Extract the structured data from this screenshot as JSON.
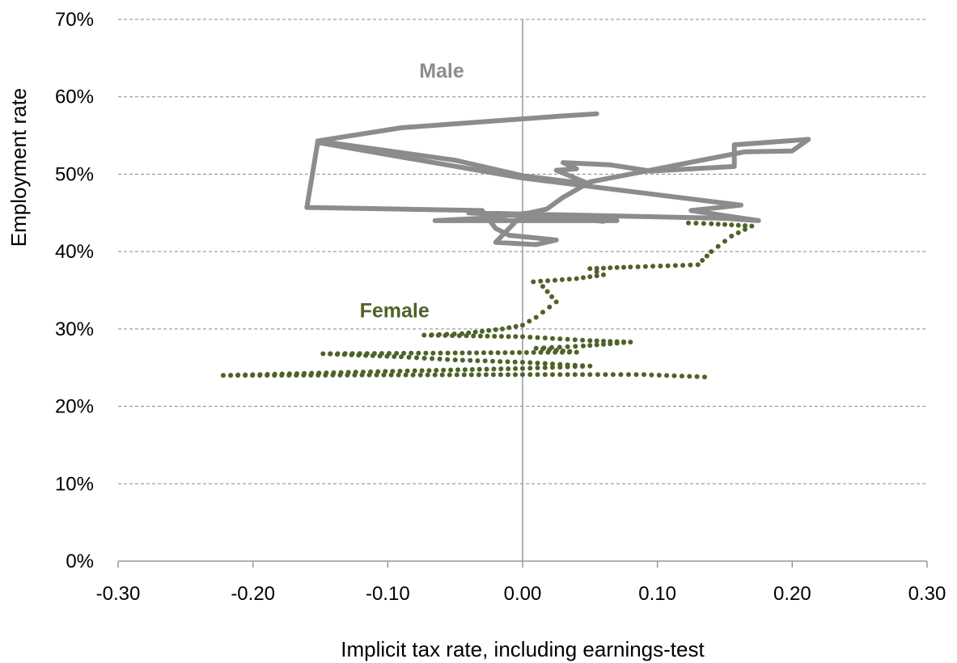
{
  "chart_data": {
    "type": "line",
    "xlabel": "Implicit tax rate, including earnings-test",
    "ylabel": "Employment rate",
    "xlim": [
      -0.3,
      0.3
    ],
    "ylim": [
      0,
      70
    ],
    "x_ticks": [
      "-0.30",
      "-0.20",
      "-0.10",
      "0.00",
      "0.10",
      "0.20",
      "0.30"
    ],
    "y_ticks": [
      "0%",
      "10%",
      "20%",
      "30%",
      "40%",
      "50%",
      "60%",
      "70%"
    ],
    "grid": "horizontal dashed",
    "series": [
      {
        "name": "Male",
        "color": "#8c8c8c",
        "style": "solid line",
        "label_at": [
          -0.06,
          62.5
        ],
        "points": [
          [
            0.055,
            57.8
          ],
          [
            0.028,
            57.5
          ],
          [
            -0.09,
            56.0
          ],
          [
            -0.152,
            54.3
          ],
          [
            -0.05,
            51.8
          ],
          [
            0.0,
            49.8
          ],
          [
            0.05,
            48.7
          ],
          [
            0.025,
            50.5
          ],
          [
            0.04,
            50.7
          ],
          [
            0.03,
            51.5
          ],
          [
            0.065,
            51.2
          ],
          [
            0.095,
            50.4
          ],
          [
            0.157,
            51.0
          ],
          [
            0.157,
            53.8
          ],
          [
            0.212,
            54.5
          ],
          [
            0.2,
            53.0
          ],
          [
            0.165,
            52.9
          ],
          [
            0.05,
            49.0
          ],
          [
            0.03,
            47.0
          ],
          [
            0.018,
            45.5
          ],
          [
            0.005,
            45.0
          ],
          [
            -0.03,
            44.3
          ],
          [
            -0.065,
            44.0
          ],
          [
            0.07,
            44.0
          ],
          [
            -0.04,
            45.0
          ],
          [
            0.15,
            44.3
          ],
          [
            0.175,
            44.0
          ],
          [
            0.125,
            45.3
          ],
          [
            0.162,
            46.0
          ],
          [
            0.0,
            49.5
          ],
          [
            -0.152,
            54.1
          ],
          [
            -0.16,
            45.7
          ],
          [
            -0.03,
            45.3
          ],
          [
            -0.02,
            43.0
          ],
          [
            -0.01,
            42.1
          ],
          [
            0.025,
            41.5
          ],
          [
            0.01,
            40.9
          ],
          [
            -0.02,
            41.2
          ],
          [
            0.0,
            44.8
          ],
          [
            0.06,
            43.9
          ]
        ]
      },
      {
        "name": "Female",
        "color": "#4f6228",
        "style": "dotted line",
        "label_at": [
          -0.095,
          31.5
        ],
        "points": [
          [
            0.123,
            43.7
          ],
          [
            0.14,
            43.6
          ],
          [
            0.17,
            43.3
          ],
          [
            0.155,
            42.0
          ],
          [
            0.14,
            40.0
          ],
          [
            0.13,
            38.3
          ],
          [
            0.08,
            38.0
          ],
          [
            0.05,
            37.8
          ],
          [
            0.06,
            37.0
          ],
          [
            0.04,
            36.5
          ],
          [
            0.008,
            36.1
          ],
          [
            0.015,
            35.5
          ],
          [
            0.025,
            33.5
          ],
          [
            0.01,
            31.5
          ],
          [
            0.0,
            30.5
          ],
          [
            -0.015,
            30.0
          ],
          [
            -0.045,
            29.4
          ],
          [
            -0.073,
            29.2
          ],
          [
            0.0,
            29.0
          ],
          [
            0.05,
            28.5
          ],
          [
            0.08,
            28.3
          ],
          [
            0.045,
            27.8
          ],
          [
            0.01,
            27.5
          ],
          [
            0.04,
            27.0
          ],
          [
            -0.05,
            26.9
          ],
          [
            -0.148,
            26.8
          ],
          [
            -0.09,
            26.4
          ],
          [
            -0.05,
            26.0
          ],
          [
            0.0,
            25.7
          ],
          [
            0.05,
            25.2
          ],
          [
            0.0,
            24.9
          ],
          [
            -0.08,
            24.6
          ],
          [
            -0.222,
            24.0
          ],
          [
            0.0,
            24.1
          ],
          [
            0.05,
            24.1
          ],
          [
            0.09,
            24.1
          ],
          [
            0.135,
            23.8
          ]
        ]
      }
    ]
  }
}
